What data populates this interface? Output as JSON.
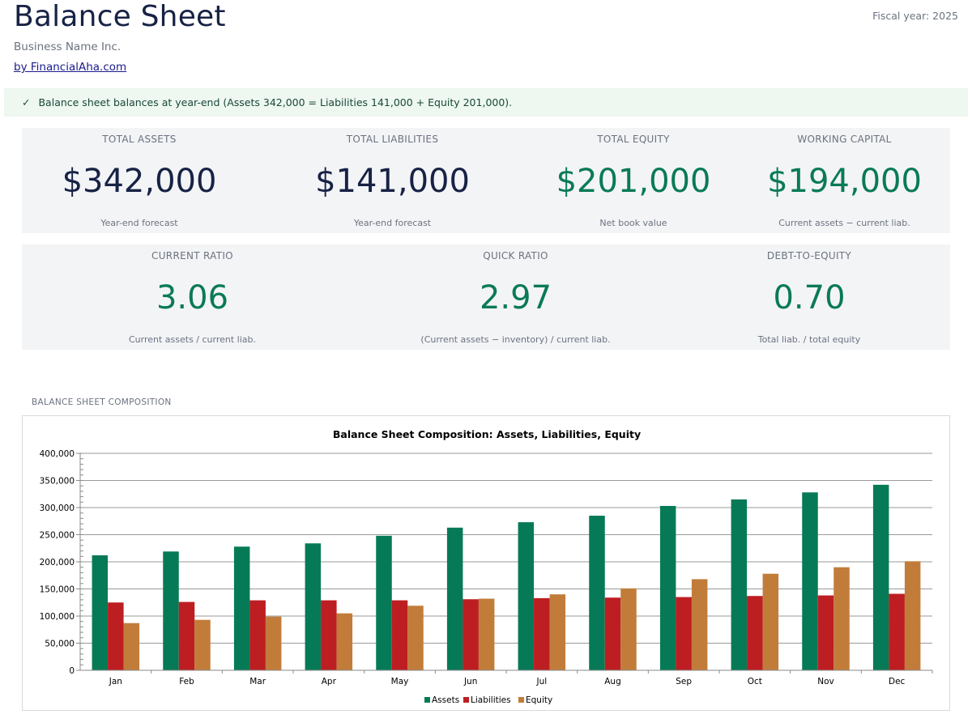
{
  "header": {
    "title": "Balance Sheet",
    "business_name": "Business Name Inc.",
    "byline": "by FinancialAha.com",
    "fiscal_year": "Fiscal year: 2025"
  },
  "banner": {
    "check": "✓",
    "text": "Balance sheet balances at year-end (Assets 342,000 = Liabilities 141,000 + Equity 201,000)."
  },
  "kpis_row1": [
    {
      "label": "TOTAL ASSETS",
      "value": "$342,000",
      "note": "Year-end forecast",
      "tone": "navy"
    },
    {
      "label": "TOTAL LIABILITIES",
      "value": "$141,000",
      "note": "Year-end forecast",
      "tone": "navy"
    },
    {
      "label": "TOTAL EQUITY",
      "value": "$201,000",
      "note": "Net book value",
      "tone": "green"
    },
    {
      "label": "WORKING CAPITAL",
      "value": "$194,000",
      "note": "Current assets − current liab.",
      "tone": "green"
    }
  ],
  "kpis_row2": [
    {
      "label": "CURRENT RATIO",
      "value": "3.06",
      "note": "Current assets / current liab.",
      "tone": "green"
    },
    {
      "label": "QUICK RATIO",
      "value": "2.97",
      "note": "(Current assets − inventory) / current liab.",
      "tone": "green"
    },
    {
      "label": "DEBT-TO-EQUITY",
      "value": "0.70",
      "note": "Total liab. / total equity",
      "tone": "green"
    }
  ],
  "section": {
    "label": "BALANCE SHEET COMPOSITION"
  },
  "colors": {
    "assets": "#067a56",
    "liabilities": "#bd1e22",
    "equity": "#c27c3a",
    "navy_text": "#172245",
    "green_text": "#0a7a56"
  },
  "chart_data": {
    "type": "bar",
    "title": "Balance Sheet Composition: Assets, Liabilities, Equity",
    "xlabel": "",
    "ylabel": "",
    "categories": [
      "Jan",
      "Feb",
      "Mar",
      "Apr",
      "May",
      "Jun",
      "Jul",
      "Aug",
      "Sep",
      "Oct",
      "Nov",
      "Dec"
    ],
    "series": [
      {
        "name": "Assets",
        "values": [
          212000,
          219000,
          228000,
          234000,
          248000,
          263000,
          273000,
          285000,
          303000,
          315000,
          328000,
          342000
        ]
      },
      {
        "name": "Liabilities",
        "values": [
          125000,
          126000,
          129000,
          129000,
          129000,
          131000,
          133000,
          134000,
          135000,
          137000,
          138000,
          141000
        ]
      },
      {
        "name": "Equity",
        "values": [
          87000,
          93000,
          99000,
          105000,
          119000,
          132000,
          140000,
          151000,
          168000,
          178000,
          190000,
          201000
        ]
      }
    ],
    "ylim": [
      0,
      400000
    ],
    "yticks": [
      "0",
      "50,000",
      "100,000",
      "150,000",
      "200,000",
      "250,000",
      "300,000",
      "350,000",
      "400,000"
    ],
    "grid": true,
    "legend": "bottom-center"
  }
}
